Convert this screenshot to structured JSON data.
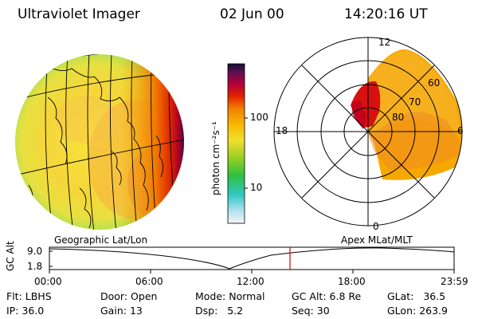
{
  "header": {
    "title": "Ultraviolet Imager",
    "date": "02 Jun 00",
    "time": "14:20:16 UT"
  },
  "colorbar": {
    "unit_label": "photon cm⁻²s⁻¹",
    "ticks": [
      "100",
      "10"
    ],
    "scale": "log"
  },
  "panels": {
    "left_label": "Geographic Lat/Lon",
    "right_label": "Apex MLat/MLT"
  },
  "polar_plot": {
    "mlt_labels": [
      "12",
      "18",
      "6",
      "0"
    ],
    "mlat_labels": [
      "60",
      "70",
      "80"
    ]
  },
  "altitude_strip": {
    "axis_label": "GC Alt",
    "y_ticks": [
      "9.0",
      "1.8"
    ],
    "x_ticks": [
      "00:00",
      "06:00",
      "12:00",
      "18:00",
      "23:59"
    ],
    "marker_time": "14:20"
  },
  "status": {
    "flt_label": "Flt:",
    "flt_value": "LBHS",
    "ip_label": "IP:",
    "ip_value": "36.0",
    "door_label": "Door:",
    "door_value": "Open",
    "gain_label": "Gain:",
    "gain_value": "13",
    "mode_label": "Mode:",
    "mode_value": "Normal",
    "dsp_label": "Dsp:",
    "dsp_value": "5.2",
    "gcalt_label": "GC Alt:",
    "gcalt_value": "6.8 Re",
    "seq_label": "Seq:",
    "seq_value": "30",
    "glat_label": "GLat:",
    "glat_value": "36.5",
    "glon_label": "GLon:",
    "glon_value": "263.9"
  },
  "colors": {
    "marker": "#e00000",
    "dayglow": "#f5a800"
  }
}
